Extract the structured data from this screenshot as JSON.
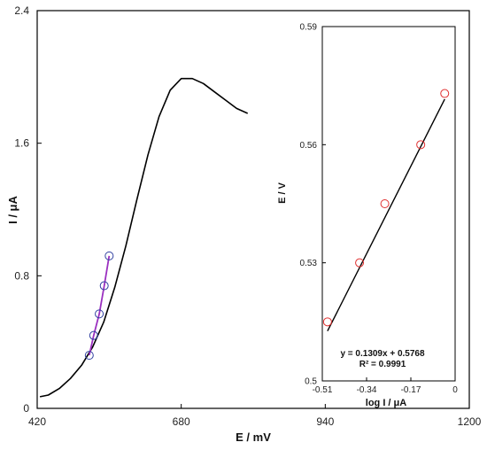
{
  "chart_data": [
    {
      "type": "line",
      "xlabel": "E / mV",
      "ylabel": "I / μA",
      "xlim": [
        420,
        1200
      ],
      "ylim": [
        0,
        2.4
      ],
      "xticks": [
        420,
        680,
        940,
        1200
      ],
      "yticks": [
        0,
        0.8,
        1.6,
        2.4
      ],
      "xtick_labels": [
        "420",
        "680",
        "940",
        "1200"
      ],
      "ytick_labels": [
        "0",
        "0.8",
        "1.6",
        "2.4"
      ],
      "grid": false,
      "series": [
        {
          "style": "curve",
          "color": "#000000",
          "x": [
            425,
            440,
            460,
            480,
            500,
            520,
            540,
            560,
            580,
            600,
            620,
            640,
            660,
            680,
            700,
            720,
            740,
            760,
            780,
            800
          ],
          "y": [
            0.07,
            0.08,
            0.12,
            0.18,
            0.26,
            0.37,
            0.52,
            0.73,
            0.98,
            1.26,
            1.53,
            1.76,
            1.92,
            1.99,
            1.99,
            1.96,
            1.91,
            1.86,
            1.81,
            1.78
          ]
        },
        {
          "style": "segment",
          "color": "#9b30c0",
          "x": [
            514,
            522,
            532,
            541,
            550
          ],
          "y": [
            0.32,
            0.44,
            0.57,
            0.74,
            0.92
          ]
        },
        {
          "style": "markers",
          "marker": "open-circle",
          "color": "#3040a0",
          "x": [
            514,
            522,
            532,
            541,
            550
          ],
          "y": [
            0.32,
            0.44,
            0.57,
            0.74,
            0.92
          ]
        }
      ]
    },
    {
      "type": "scatter",
      "xlabel": "log I / μA",
      "ylabel": "E / V",
      "xlim": [
        -0.51,
        0
      ],
      "ylim": [
        0.5,
        0.59
      ],
      "xticks": [
        -0.51,
        -0.34,
        -0.17,
        0
      ],
      "yticks": [
        0.5,
        0.53,
        0.56,
        0.59
      ],
      "xtick_labels": [
        "-0.51",
        "-0.34",
        "-0.17",
        "0"
      ],
      "ytick_labels": [
        "0.5",
        "0.53",
        "0.56",
        "0.59"
      ],
      "grid": false,
      "annotation": [
        "y = 0.1309x + 0.5768",
        "R² = 0.9991"
      ],
      "points": {
        "x": [
          -0.49,
          -0.367,
          -0.27,
          -0.132,
          -0.04
        ],
        "y": [
          0.515,
          0.53,
          0.545,
          0.56,
          0.573
        ]
      },
      "fit": {
        "slope": 0.1309,
        "intercept": 0.5768,
        "x_range": [
          -0.49,
          -0.04
        ]
      },
      "marker_color": "#e03030"
    }
  ]
}
